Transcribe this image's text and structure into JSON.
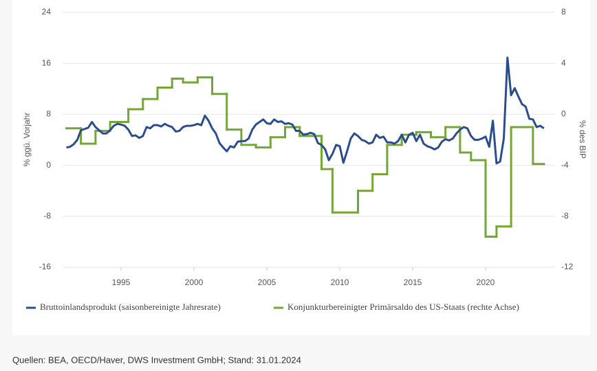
{
  "chart_data": {
    "type": "line",
    "y_label": "% ggü. Vorjahr",
    "y2_label": "% des BIP",
    "xlim": [
      1991,
      2024.75
    ],
    "xticks": [
      1995,
      2000,
      2005,
      2010,
      2015,
      2020
    ],
    "ylim": [
      -16,
      24
    ],
    "yticks": [
      -16,
      -8,
      0,
      8,
      16,
      24
    ],
    "y2lim": [
      -12,
      8
    ],
    "y2ticks": [
      -12,
      -8,
      -4,
      0,
      4,
      8
    ],
    "grid": true,
    "legend": "bottom",
    "series": [
      {
        "name": "Bruttoinlandsprodukt (saisonbereinigte Jahresrate)",
        "color": "#2b4d8c",
        "x": [
          1991.25,
          1991.5,
          1991.75,
          1992.0,
          1992.25,
          1992.5,
          1992.75,
          1993.0,
          1993.25,
          1993.5,
          1993.75,
          1994.0,
          1994.25,
          1994.5,
          1994.75,
          1995.0,
          1995.25,
          1995.5,
          1995.75,
          1996.0,
          1996.25,
          1996.5,
          1996.75,
          1997.0,
          1997.25,
          1997.5,
          1997.75,
          1998.0,
          1998.25,
          1998.5,
          1998.75,
          1999.0,
          1999.25,
          1999.5,
          1999.75,
          2000.0,
          2000.25,
          2000.5,
          2000.75,
          2001.0,
          2001.25,
          2001.5,
          2001.75,
          2002.0,
          2002.25,
          2002.5,
          2002.75,
          2003.0,
          2003.25,
          2003.5,
          2003.75,
          2004.0,
          2004.25,
          2004.5,
          2004.75,
          2005.0,
          2005.25,
          2005.5,
          2005.75,
          2006.0,
          2006.25,
          2006.5,
          2006.75,
          2007.0,
          2007.25,
          2007.5,
          2007.75,
          2008.0,
          2008.25,
          2008.5,
          2008.75,
          2009.0,
          2009.25,
          2009.5,
          2009.75,
          2010.0,
          2010.25,
          2010.5,
          2010.75,
          2011.0,
          2011.25,
          2011.5,
          2011.75,
          2012.0,
          2012.25,
          2012.5,
          2012.75,
          2013.0,
          2013.25,
          2013.5,
          2013.75,
          2014.0,
          2014.25,
          2014.5,
          2014.75,
          2015.0,
          2015.25,
          2015.5,
          2015.75,
          2016.0,
          2016.25,
          2016.5,
          2016.75,
          2017.0,
          2017.25,
          2017.5,
          2017.75,
          2018.0,
          2018.25,
          2018.5,
          2018.75,
          2019.0,
          2019.25,
          2019.5,
          2019.75,
          2020.0,
          2020.25,
          2020.5,
          2020.75,
          2021.0,
          2021.25,
          2021.5,
          2021.75,
          2022.0,
          2022.25,
          2022.5,
          2022.75,
          2023.0,
          2023.25,
          2023.5,
          2023.75,
          2024.0
        ],
        "values": [
          2.8,
          2.9,
          3.3,
          4.0,
          5.5,
          5.7,
          5.9,
          6.8,
          6.0,
          5.5,
          5.0,
          5.0,
          5.5,
          6.2,
          6.5,
          6.4,
          6.2,
          5.6,
          4.6,
          4.7,
          4.3,
          4.6,
          6.0,
          5.8,
          6.3,
          6.3,
          6.1,
          6.5,
          6.2,
          6.0,
          5.3,
          5.4,
          6.0,
          6.2,
          6.2,
          6.3,
          6.5,
          6.3,
          7.8,
          7.0,
          5.8,
          5.0,
          3.5,
          2.8,
          2.2,
          3.0,
          2.8,
          3.7,
          3.8,
          3.8,
          4.2,
          5.6,
          6.4,
          6.8,
          7.2,
          6.6,
          6.5,
          7.2,
          6.8,
          6.9,
          6.5,
          6.6,
          6.4,
          5.4,
          5.4,
          4.8,
          4.9,
          5.1,
          4.9,
          3.5,
          3.2,
          2.5,
          0.8,
          1.8,
          3.2,
          3.0,
          0.4,
          2.2,
          4.2,
          5.0,
          4.6,
          4.0,
          3.8,
          3.4,
          3.6,
          4.8,
          4.3,
          4.5,
          3.6,
          3.6,
          3.4,
          3.8,
          4.8,
          3.6,
          4.8,
          5.1,
          3.8,
          4.8,
          3.4,
          3.0,
          2.8,
          2.5,
          2.8,
          3.7,
          4.1,
          3.9,
          4.2,
          5.0,
          5.6,
          6.0,
          5.8,
          4.6,
          4.0,
          4.0,
          4.2,
          4.5,
          2.9,
          7.0,
          0.3,
          0.6,
          4.2,
          16.9,
          11.0,
          12.1,
          10.8,
          9.6,
          9.2,
          7.3,
          7.2,
          6.0,
          6.2,
          5.8
        ]
      },
      {
        "name": "Konjunkturbereinigter Primärsaldo des US-Staats (rechte Achse)",
        "color": "#74a637",
        "axis": "y2",
        "step": "post",
        "x": [
          1991.25,
          1992.25,
          1993.25,
          1994.25,
          1995.5,
          1996.5,
          1997.5,
          1998.5,
          1999.25,
          2000.25,
          2001.25,
          2002.25,
          2003.25,
          2004.25,
          2005.25,
          2006.25,
          2007.25,
          2008.75,
          2009.5,
          2011.25,
          2012.25,
          2013.25,
          2014.25,
          2015.25,
          2016.25,
          2017.25,
          2018.25,
          2019.0,
          2020.0,
          2020.75,
          2021.75,
          2023.25,
          2024.0
        ],
        "values": [
          -1.1,
          -2.3,
          -1.3,
          -0.6,
          0.4,
          1.2,
          2.1,
          2.8,
          2.5,
          2.9,
          1.6,
          -1.2,
          -2.4,
          -2.6,
          -1.8,
          -1.0,
          -1.7,
          -4.3,
          -7.7,
          -6.0,
          -4.7,
          -2.4,
          -1.6,
          -1.4,
          -1.8,
          -1.0,
          -3.0,
          -3.6,
          -9.6,
          -8.8,
          -1.0,
          -3.9,
          -3.9
        ]
      }
    ]
  },
  "source": "Quellen: BEA, OECD/Haver, DWS Investment GmbH; Stand: 31.01.2024"
}
